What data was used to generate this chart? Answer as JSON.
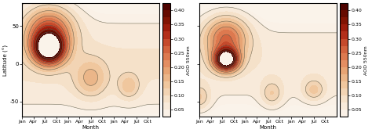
{
  "colorbar_label": "AOD 550nm",
  "colorbar_ticks": [
    0.05,
    0.1,
    0.15,
    0.2,
    0.25,
    0.3,
    0.35,
    0.4
  ],
  "clim": [
    0.04,
    0.42
  ],
  "ylabel": "Latitude (°)",
  "xlabel": "Month",
  "yticks": [
    -50,
    0,
    50
  ],
  "xtick_labels": [
    "Jan",
    "Apr",
    "Jul",
    "Oct",
    "Jan",
    "Apr",
    "Jul",
    "Oct",
    "Jan",
    "Apr",
    "Jul",
    "Oct"
  ],
  "lat_range": [
    -70,
    80
  ],
  "month_range": [
    0,
    36
  ],
  "contour_line_levels": [
    0.05,
    0.1,
    0.15,
    0.2,
    0.25,
    0.3,
    0.35,
    0.4
  ],
  "filled_levels": [
    0.04,
    0.05,
    0.075,
    0.1,
    0.125,
    0.15,
    0.175,
    0.2,
    0.225,
    0.25,
    0.275,
    0.3,
    0.325,
    0.35,
    0.375,
    0.4,
    0.42
  ],
  "cmap_colors": [
    "#faf3ea",
    "#f5e0c8",
    "#f0c8a0",
    "#e8a878",
    "#e08055",
    "#cc5533",
    "#aa2211",
    "#771100",
    "#440000"
  ],
  "left_peak": {
    "lat": 20,
    "month": 7,
    "lat_sig": 14,
    "month_sig": 2.8,
    "amp": 0.42
  },
  "left_broad": {
    "lat": 45,
    "month": 7,
    "lat_sig": 22,
    "month_sig": 4.5,
    "amp": 0.22
  },
  "left_bg": {
    "lat_sig": 55,
    "amp": 0.08
  },
  "left_south1": {
    "lat": -20,
    "month": 18,
    "lat_sig": 18,
    "month_sig": 3,
    "amp": 0.09
  },
  "left_south2": {
    "lat": -30,
    "month": 28,
    "lat_sig": 12,
    "month_sig": 2,
    "amp": 0.075
  },
  "right_peak": {
    "lat": 5,
    "month": 7,
    "lat_sig": 10,
    "month_sig": 2.2,
    "amp": 0.42
  },
  "right_broad": {
    "lat": 35,
    "month": 7,
    "lat_sig": 20,
    "month_sig": 4.0,
    "amp": 0.2
  },
  "right_bg": {
    "lat_sig": 50,
    "amp": 0.07
  },
  "right_south1": {
    "lat": -45,
    "month": 0,
    "lat_sig": 12,
    "month_sig": 2,
    "amp": 0.08
  },
  "right_south2": {
    "lat": -40,
    "month": 19,
    "lat_sig": 12,
    "month_sig": 2,
    "amp": 0.075
  },
  "right_south3": {
    "lat": -35,
    "month": 30,
    "lat_sig": 10,
    "month_sig": 2,
    "amp": 0.08
  }
}
